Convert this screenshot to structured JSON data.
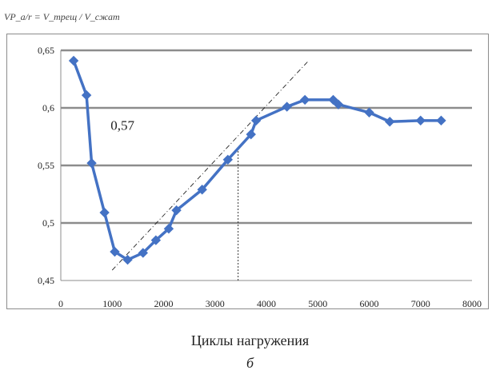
{
  "chart_data": {
    "type": "line",
    "ylabel": "VP_a/r = V_трещ / V_сжат",
    "xlabel": "Циклы нагружения",
    "caption": "б",
    "annotation": "0,57",
    "xlim": [
      0,
      8000
    ],
    "ylim": [
      0.45,
      0.65
    ],
    "xticks": [
      0,
      1000,
      2000,
      3000,
      4000,
      5000,
      6000,
      7000,
      8000
    ],
    "xtick_labels": [
      "0",
      "1000",
      "2000",
      "3000",
      "4000",
      "5000",
      "6000",
      "7000",
      "8000"
    ],
    "yticks": [
      0.45,
      0.5,
      0.55,
      0.6,
      0.65
    ],
    "ytick_labels": [
      "0,45",
      "0,5",
      "0,55",
      "0,6",
      "0,65"
    ],
    "grid": true,
    "series": [
      {
        "color": "#4472c4",
        "x": [
          250,
          500,
          600,
          850,
          1050,
          1300,
          1600,
          1850,
          2100,
          2250,
          2750,
          3250,
          3700,
          3800,
          4400,
          4750,
          5300,
          5400,
          6000,
          6400,
          7000,
          7400
        ],
        "y": [
          0.641,
          0.611,
          0.552,
          0.509,
          0.475,
          0.468,
          0.474,
          0.485,
          0.495,
          0.511,
          0.529,
          0.555,
          0.577,
          0.589,
          0.601,
          0.607,
          0.607,
          0.603,
          0.596,
          0.588,
          0.589,
          0.589
        ]
      }
    ],
    "tangent_line": {
      "x": [
        1000,
        4800
      ],
      "y": [
        0.459,
        0.64
      ]
    },
    "marker_line": {
      "x": 3450,
      "y_from": 0.45,
      "y_to": 0.566
    }
  }
}
